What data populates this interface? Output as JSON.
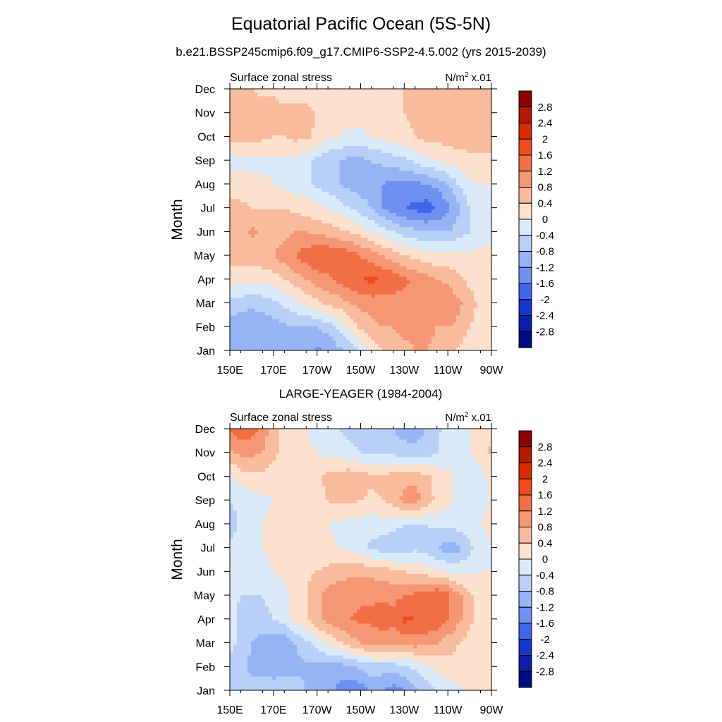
{
  "title": "Equatorial Pacific Ocean (5S-5N)",
  "subtitle": "b.e21.BSSP245cmip6.f09_g17.CMIP6-SSP2-4.5.002 (yrs 2015-2039)",
  "colorbar": {
    "levels": [
      "2.8",
      "2.4",
      "2",
      "1.6",
      "1.2",
      "0.8",
      "0.4",
      "0",
      "-0.4",
      "-0.8",
      "-1.2",
      "-1.6",
      "-2",
      "-2.4",
      "-2.8"
    ],
    "colors": [
      "#8c0000",
      "#b31a00",
      "#d92b00",
      "#f24a1f",
      "#f26f45",
      "#f59775",
      "#f8bb9e",
      "#fbe1ce",
      "#dbeaf8",
      "#b8cff7",
      "#96b4f5",
      "#6f90f0",
      "#3f66e8",
      "#1536cf",
      "#0a1ea8",
      "#000d80"
    ]
  },
  "chart_data": [
    {
      "type": "heatmap",
      "title": "",
      "left_label": "Surface zonal stress",
      "right_label": "N/m² x.01",
      "ylabel": "Month",
      "xlabel": "",
      "x_ticks": [
        "150E",
        "170E",
        "170W",
        "150W",
        "130W",
        "110W",
        "90W"
      ],
      "y_ticks": [
        "Jan",
        "Feb",
        "Mar",
        "Apr",
        "May",
        "Jun",
        "Jul",
        "Aug",
        "Sep",
        "Oct",
        "Nov",
        "Dec"
      ],
      "x": [
        150,
        155,
        160,
        165,
        170,
        175,
        180,
        185,
        190,
        195,
        200,
        205,
        210,
        215,
        220,
        225,
        230,
        235,
        240,
        245,
        250,
        255,
        260,
        265,
        270
      ],
      "y": [
        "Jan",
        "Feb",
        "Mar",
        "Apr",
        "May",
        "Jun",
        "Jul",
        "Aug",
        "Sep",
        "Oct",
        "Nov",
        "Dec"
      ],
      "values": [
        [
          -1.0,
          -1.0,
          -1.1,
          -1.1,
          -1.0,
          -1.0,
          -1.0,
          -1.1,
          -1.3,
          -1.2,
          -0.9,
          -0.7,
          -0.3,
          0.1,
          0.4,
          0.6,
          0.7,
          0.8,
          0.8,
          0.7,
          0.5,
          0.3,
          0.2,
          0.1,
          0.1
        ],
        [
          -1.0,
          -1.1,
          -1.1,
          -1.1,
          -1.0,
          -0.9,
          -0.8,
          -0.8,
          -0.8,
          -0.6,
          -0.3,
          0.1,
          0.5,
          0.7,
          0.8,
          0.8,
          0.9,
          0.9,
          0.9,
          0.8,
          0.8,
          0.7,
          0.4,
          0.2,
          0.1
        ],
        [
          -0.5,
          -0.6,
          -0.7,
          -0.6,
          -0.5,
          -0.3,
          -0.1,
          0.1,
          0.3,
          0.5,
          0.6,
          0.8,
          0.9,
          1.0,
          1.0,
          1.0,
          1.0,
          1.1,
          1.1,
          1.2,
          1.1,
          0.9,
          0.6,
          0.3,
          0.1
        ],
        [
          0.2,
          0.1,
          0.1,
          0.1,
          0.2,
          0.4,
          0.6,
          0.8,
          1.0,
          1.1,
          1.3,
          1.5,
          1.6,
          1.7,
          1.6,
          1.5,
          1.3,
          1.1,
          1.0,
          0.8,
          0.7,
          0.5,
          0.3,
          0.1,
          0.0
        ],
        [
          0.6,
          0.6,
          0.6,
          0.7,
          0.8,
          1.0,
          1.2,
          1.4,
          1.6,
          1.6,
          1.5,
          1.4,
          1.2,
          1.0,
          0.8,
          0.6,
          0.4,
          0.3,
          0.2,
          0.1,
          0.1,
          0.1,
          0.1,
          0.1,
          0.1
        ],
        [
          0.5,
          0.6,
          0.9,
          0.7,
          0.6,
          0.7,
          0.8,
          0.8,
          0.7,
          0.6,
          0.5,
          0.4,
          0.2,
          0.0,
          -0.2,
          -0.4,
          -0.6,
          -0.7,
          -0.8,
          -0.8,
          -0.8,
          -0.6,
          -0.4,
          -0.2,
          -0.1
        ],
        [
          0.5,
          0.5,
          0.4,
          0.4,
          0.4,
          0.4,
          0.3,
          0.2,
          0.1,
          0.0,
          -0.2,
          -0.4,
          -0.6,
          -0.8,
          -1.2,
          -1.4,
          -1.6,
          -1.7,
          -1.8,
          -1.6,
          -1.3,
          -0.9,
          -0.4,
          -0.1,
          0.0
        ],
        [
          0.2,
          0.2,
          0.1,
          0.1,
          0.0,
          -0.1,
          -0.2,
          -0.3,
          -0.5,
          -0.6,
          -0.8,
          -0.9,
          -1.0,
          -1.0,
          -1.2,
          -1.3,
          -1.3,
          -1.3,
          -1.2,
          -1.1,
          -0.8,
          -0.4,
          -0.1,
          0.0,
          0.0
        ],
        [
          -0.2,
          -0.1,
          -0.1,
          -0.1,
          -0.1,
          -0.1,
          -0.1,
          -0.3,
          -0.5,
          -0.7,
          -0.8,
          -0.9,
          -0.9,
          -0.8,
          -0.7,
          -0.6,
          -0.5,
          -0.3,
          -0.1,
          0.0,
          0.1,
          0.2,
          0.3,
          0.3,
          0.3
        ],
        [
          0.5,
          0.6,
          0.5,
          0.5,
          0.4,
          0.4,
          0.5,
          0.5,
          0.3,
          0.1,
          0.0,
          -0.1,
          -0.1,
          0.0,
          0.1,
          0.2,
          0.3,
          0.4,
          0.5,
          0.5,
          0.6,
          0.6,
          0.6,
          0.6,
          0.6
        ],
        [
          0.6,
          0.8,
          0.7,
          0.6,
          0.6,
          0.5,
          0.5,
          0.5,
          0.4,
          0.3,
          0.2,
          0.2,
          0.2,
          0.2,
          0.2,
          0.3,
          0.4,
          0.5,
          0.6,
          0.6,
          0.7,
          0.7,
          0.7,
          0.7,
          0.7
        ],
        [
          0.4,
          0.5,
          0.4,
          0.3,
          0.3,
          0.2,
          0.2,
          0.2,
          0.2,
          0.2,
          0.2,
          0.2,
          0.2,
          0.2,
          0.2,
          0.3,
          0.4,
          0.5,
          0.6,
          0.6,
          0.6,
          0.6,
          0.6,
          0.6,
          0.6
        ]
      ]
    },
    {
      "type": "heatmap",
      "title": "LARGE-YEAGER (1984-2004)",
      "left_label": "Surface zonal stress",
      "right_label": "N/m² x.01",
      "ylabel": "Month",
      "xlabel": "",
      "x_ticks": [
        "150E",
        "170E",
        "170W",
        "150W",
        "130W",
        "110W",
        "90W"
      ],
      "y_ticks": [
        "Jan",
        "Feb",
        "Mar",
        "Apr",
        "May",
        "Jun",
        "Jul",
        "Aug",
        "Sep",
        "Oct",
        "Nov",
        "Dec"
      ],
      "x": [
        150,
        155,
        160,
        165,
        170,
        175,
        180,
        185,
        190,
        195,
        200,
        205,
        210,
        215,
        220,
        225,
        230,
        235,
        240,
        245,
        250,
        255,
        260,
        265,
        270
      ],
      "y": [
        "Jan",
        "Feb",
        "Mar",
        "Apr",
        "May",
        "Jun",
        "Jul",
        "Aug",
        "Sep",
        "Oct",
        "Nov",
        "Dec"
      ],
      "values": [
        [
          -0.5,
          -0.6,
          -0.6,
          -0.5,
          -0.5,
          -0.5,
          -0.6,
          -0.8,
          -1.0,
          -1.1,
          -1.3,
          -1.5,
          -1.4,
          -1.1,
          -1.2,
          -1.4,
          -1.2,
          -0.9,
          -0.6,
          -0.4,
          -0.2,
          -0.1,
          0.1,
          0.2,
          0.2
        ],
        [
          -0.5,
          -0.7,
          -0.9,
          -1.0,
          -1.1,
          -1.0,
          -0.9,
          -0.9,
          -1.0,
          -1.0,
          -1.0,
          -0.9,
          -0.7,
          -0.6,
          -0.6,
          -0.6,
          -0.5,
          -0.3,
          -0.1,
          0.1,
          0.2,
          0.3,
          0.3,
          0.3,
          0.3
        ],
        [
          -0.3,
          -0.5,
          -0.8,
          -1.0,
          -1.1,
          -1.1,
          -0.8,
          -0.5,
          -0.2,
          0.1,
          0.3,
          0.6,
          0.8,
          0.9,
          0.9,
          0.9,
          0.9,
          1.0,
          0.9,
          0.8,
          0.6,
          0.4,
          0.2,
          0.1,
          0.0
        ],
        [
          -0.3,
          -0.5,
          -0.5,
          -0.5,
          -0.4,
          -0.2,
          0.1,
          0.4,
          0.7,
          0.9,
          1.1,
          1.2,
          1.3,
          1.3,
          1.5,
          1.3,
          1.7,
          1.6,
          1.6,
          1.5,
          1.2,
          0.9,
          0.5,
          0.2,
          0.0
        ],
        [
          -0.3,
          -0.4,
          -0.4,
          -0.4,
          -0.3,
          -0.1,
          0.1,
          0.4,
          0.7,
          1.0,
          1.1,
          1.1,
          1.1,
          1.1,
          1.1,
          1.1,
          1.2,
          1.3,
          1.4,
          1.6,
          1.3,
          0.9,
          0.5,
          0.2,
          0.0
        ],
        [
          -0.2,
          -0.3,
          -0.2,
          -0.1,
          0.0,
          0.1,
          0.2,
          0.3,
          0.4,
          0.5,
          0.6,
          0.7,
          0.7,
          0.7,
          0.6,
          0.5,
          0.4,
          0.3,
          0.2,
          0.1,
          0.0,
          -0.1,
          -0.1,
          0.0,
          0.0
        ],
        [
          -0.3,
          -0.2,
          -0.1,
          0.0,
          0.1,
          0.1,
          0.2,
          0.2,
          0.2,
          0.1,
          0.0,
          -0.1,
          -0.3,
          -0.5,
          -0.6,
          -0.7,
          -0.6,
          -0.5,
          -0.6,
          -0.8,
          -1.0,
          -0.9,
          -0.5,
          -0.2,
          0.0
        ],
        [
          -0.6,
          -0.3,
          -0.1,
          0.0,
          0.1,
          0.1,
          0.2,
          0.2,
          0.1,
          0.0,
          -0.1,
          -0.2,
          -0.2,
          -0.2,
          -0.2,
          -0.3,
          -0.4,
          -0.4,
          -0.4,
          -0.3,
          -0.3,
          -0.2,
          -0.1,
          0.0,
          0.1
        ],
        [
          -0.4,
          -0.3,
          -0.2,
          -0.1,
          0.0,
          0.1,
          0.2,
          0.2,
          0.3,
          0.4,
          0.5,
          0.5,
          0.4,
          0.3,
          0.4,
          0.6,
          0.9,
          1.0,
          0.6,
          0.3,
          0.1,
          -0.1,
          -0.2,
          -0.1,
          0.0
        ],
        [
          -0.1,
          0.2,
          0.3,
          0.3,
          0.2,
          0.2,
          0.2,
          0.2,
          0.3,
          0.5,
          0.6,
          0.7,
          0.6,
          0.5,
          0.5,
          0.6,
          0.7,
          0.7,
          0.5,
          0.3,
          0.1,
          -0.1,
          -0.2,
          -0.1,
          0.1
        ],
        [
          0.7,
          0.9,
          0.9,
          0.8,
          0.5,
          0.3,
          0.2,
          0.1,
          0.0,
          -0.1,
          -0.2,
          -0.3,
          -0.4,
          -0.5,
          -0.5,
          -0.5,
          -0.6,
          -0.7,
          -0.6,
          -0.4,
          -0.2,
          -0.1,
          0.0,
          0.1,
          0.5
        ],
        [
          1.2,
          1.5,
          1.4,
          1.1,
          0.5,
          0.3,
          0.1,
          0.0,
          -0.2,
          -0.3,
          -0.4,
          -0.5,
          -0.6,
          -0.6,
          -0.7,
          -0.8,
          -1.0,
          -1.0,
          -0.8,
          -0.5,
          -0.2,
          -0.1,
          0.0,
          0.1,
          0.3
        ]
      ]
    }
  ]
}
